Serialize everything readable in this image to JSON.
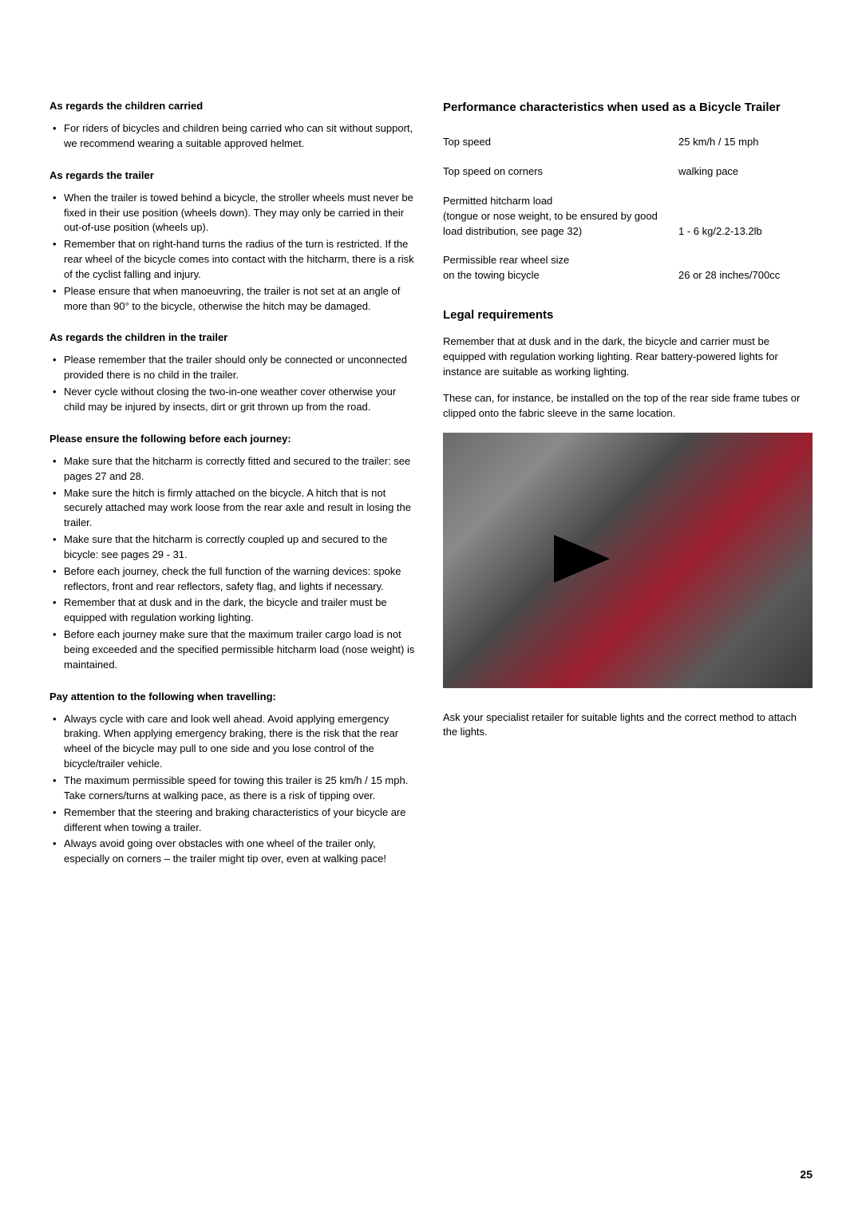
{
  "left": {
    "sec1": {
      "heading": "As regards the children carried",
      "items": [
        "For riders of bicycles and children being carried who can sit without support, we recommend wearing a suitable approved helmet."
      ]
    },
    "sec2": {
      "heading": "As regards the trailer",
      "items": [
        "When the trailer is towed behind a bicycle, the stroller wheels must never be fixed in their use position (wheels down). They may only be carried in their out-of-use position (wheels up).",
        "Remember that on right-hand turns the radius of the turn is restricted. If the rear wheel of the bicycle comes into contact with the hitcharm, there is a risk of the cyclist falling and injury.",
        "Please ensure that when manoeuvring, the trailer is not set at an angle of more than 90° to the bicycle, otherwise the hitch may be damaged."
      ]
    },
    "sec3": {
      "heading": "As regards the children in the trailer",
      "items": [
        "Please remember that the trailer should only be connected or unconnected provided there is no child in the trailer.",
        "Never cycle without closing the two-in-one weather cover otherwise your child may be injured by insects, dirt or grit thrown up from the road."
      ]
    },
    "sec4": {
      "heading": "Please ensure the following before each journey:",
      "items": [
        "Make sure that the hitcharm is correctly fitted and secured to the trailer: see pages 27 and 28.",
        "Make sure the hitch is firmly attached on the bicycle. A hitch that is not securely attached may work loose from the rear axle and result in losing the trailer.",
        "Make sure that the hitcharm is correctly coupled up and secured to the bicycle: see pages 29 - 31.",
        "Before each journey, check the full function of the warning devices: spoke reflectors, front and rear reflectors, safety flag, and lights if necessary.",
        "Remember that at dusk and in the dark, the bicycle and trailer must be equipped with regulation working lighting.",
        "Before each journey make sure that the maximum trailer cargo load is not being exceeded and the specified permissible hitcharm load (nose weight) is maintained."
      ]
    },
    "sec5": {
      "heading": "Pay attention to the following when travelling:",
      "items": [
        "Always cycle with care and look well ahead. Avoid applying emergency braking. When applying emergency braking, there is the risk that the rear wheel of the bicycle may pull to one side and you lose control of the bicycle/trailer vehicle.",
        "The maximum permissible speed for towing this trailer is 25 km/h / 15 mph. Take corners/turns at walking pace, as there is a risk of tipping over.",
        "Remember that the steering and braking characteristics of your bicycle are different when towing a trailer.",
        "Always avoid going over obstacles with one wheel of the trailer only, especially on corners – the trailer might tip over, even at walking pace!"
      ]
    }
  },
  "right": {
    "perf": {
      "heading": "Performance characteristics when used as a Bicycle Trailer",
      "rows": [
        {
          "label": "Top speed",
          "value": "25 km/h / 15 mph"
        },
        {
          "label": "Top speed on corners",
          "value": "walking pace"
        },
        {
          "label": "Permitted hitcharm load\n(tongue or nose weight, to be ensured by good load distribution, see page 32)",
          "value": "1 -  6 kg/2.2-13.2lb"
        },
        {
          "label": "Permissible rear wheel size\non the towing bicycle",
          "value": "26 or 28 inches/700cc"
        }
      ]
    },
    "legal": {
      "heading": "Legal requirements",
      "p1": "Remember that at dusk and in the dark, the bicycle and carrier must be equipped with regulation working lighting. Rear battery-powered lights for instance are suitable as working lighting.",
      "p2": "These can, for instance, be installed on the top of the rear side frame tubes or clipped onto the fabric sleeve in the same location.",
      "p3": "Ask your specialist retailer for suitable lights and the correct method to attach the lights."
    }
  },
  "pageNumber": "25",
  "colors": {
    "text": "#000000",
    "background": "#ffffff"
  },
  "typography": {
    "body_fontsize": 13,
    "heading_fontsize_h2": 15,
    "heading_fontsize_h3": 13,
    "pagenum_fontsize": 14
  }
}
